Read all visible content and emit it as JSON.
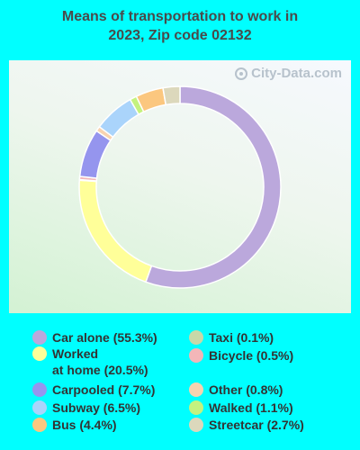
{
  "title_line1": "Means of transportation to work in",
  "title_line2": "2023, Zip code 02132",
  "watermark": "City-Data.com",
  "colors": {
    "background": "#00ffff"
  },
  "chart_data": {
    "type": "pie",
    "donut": true,
    "title": "Means of transportation to work in 2023, Zip code 02132",
    "slices": [
      {
        "label": "Car alone",
        "value": 55.3,
        "color": "#bba8dc",
        "legend": "Car alone (55.3%)"
      },
      {
        "label": "Worked at home",
        "value": 20.5,
        "color": "#ffff99",
        "legend": "Worked\nat home (20.5%)"
      },
      {
        "label": "Taxi",
        "value": 0.1,
        "color": "#c8d8a8",
        "legend": "Taxi (0.1%)"
      },
      {
        "label": "Bicycle",
        "value": 0.5,
        "color": "#f3b6b8",
        "legend": "Bicycle (0.5%)"
      },
      {
        "label": "Carpooled",
        "value": 7.7,
        "color": "#9595ee",
        "legend": "Carpooled (7.7%)"
      },
      {
        "label": "Other",
        "value": 0.8,
        "color": "#f8d3b0",
        "legend": "Other (0.8%)"
      },
      {
        "label": "Subway",
        "value": 6.5,
        "color": "#aad4fb",
        "legend": "Subway (6.5%)"
      },
      {
        "label": "Walked",
        "value": 1.1,
        "color": "#c4f27f",
        "legend": "Walked (1.1%)"
      },
      {
        "label": "Bus",
        "value": 4.4,
        "color": "#fbc77f",
        "legend": "Bus (4.4%)"
      },
      {
        "label": "Streetcar",
        "value": 2.7,
        "color": "#dcd8bc",
        "legend": "Streetcar (2.7%)"
      }
    ],
    "legend_columns": [
      [
        "Car alone",
        "Worked at home",
        "Carpooled",
        "Subway",
        "Bus"
      ],
      [
        "Taxi",
        "Bicycle",
        "Other",
        "Walked",
        "Streetcar"
      ]
    ]
  }
}
